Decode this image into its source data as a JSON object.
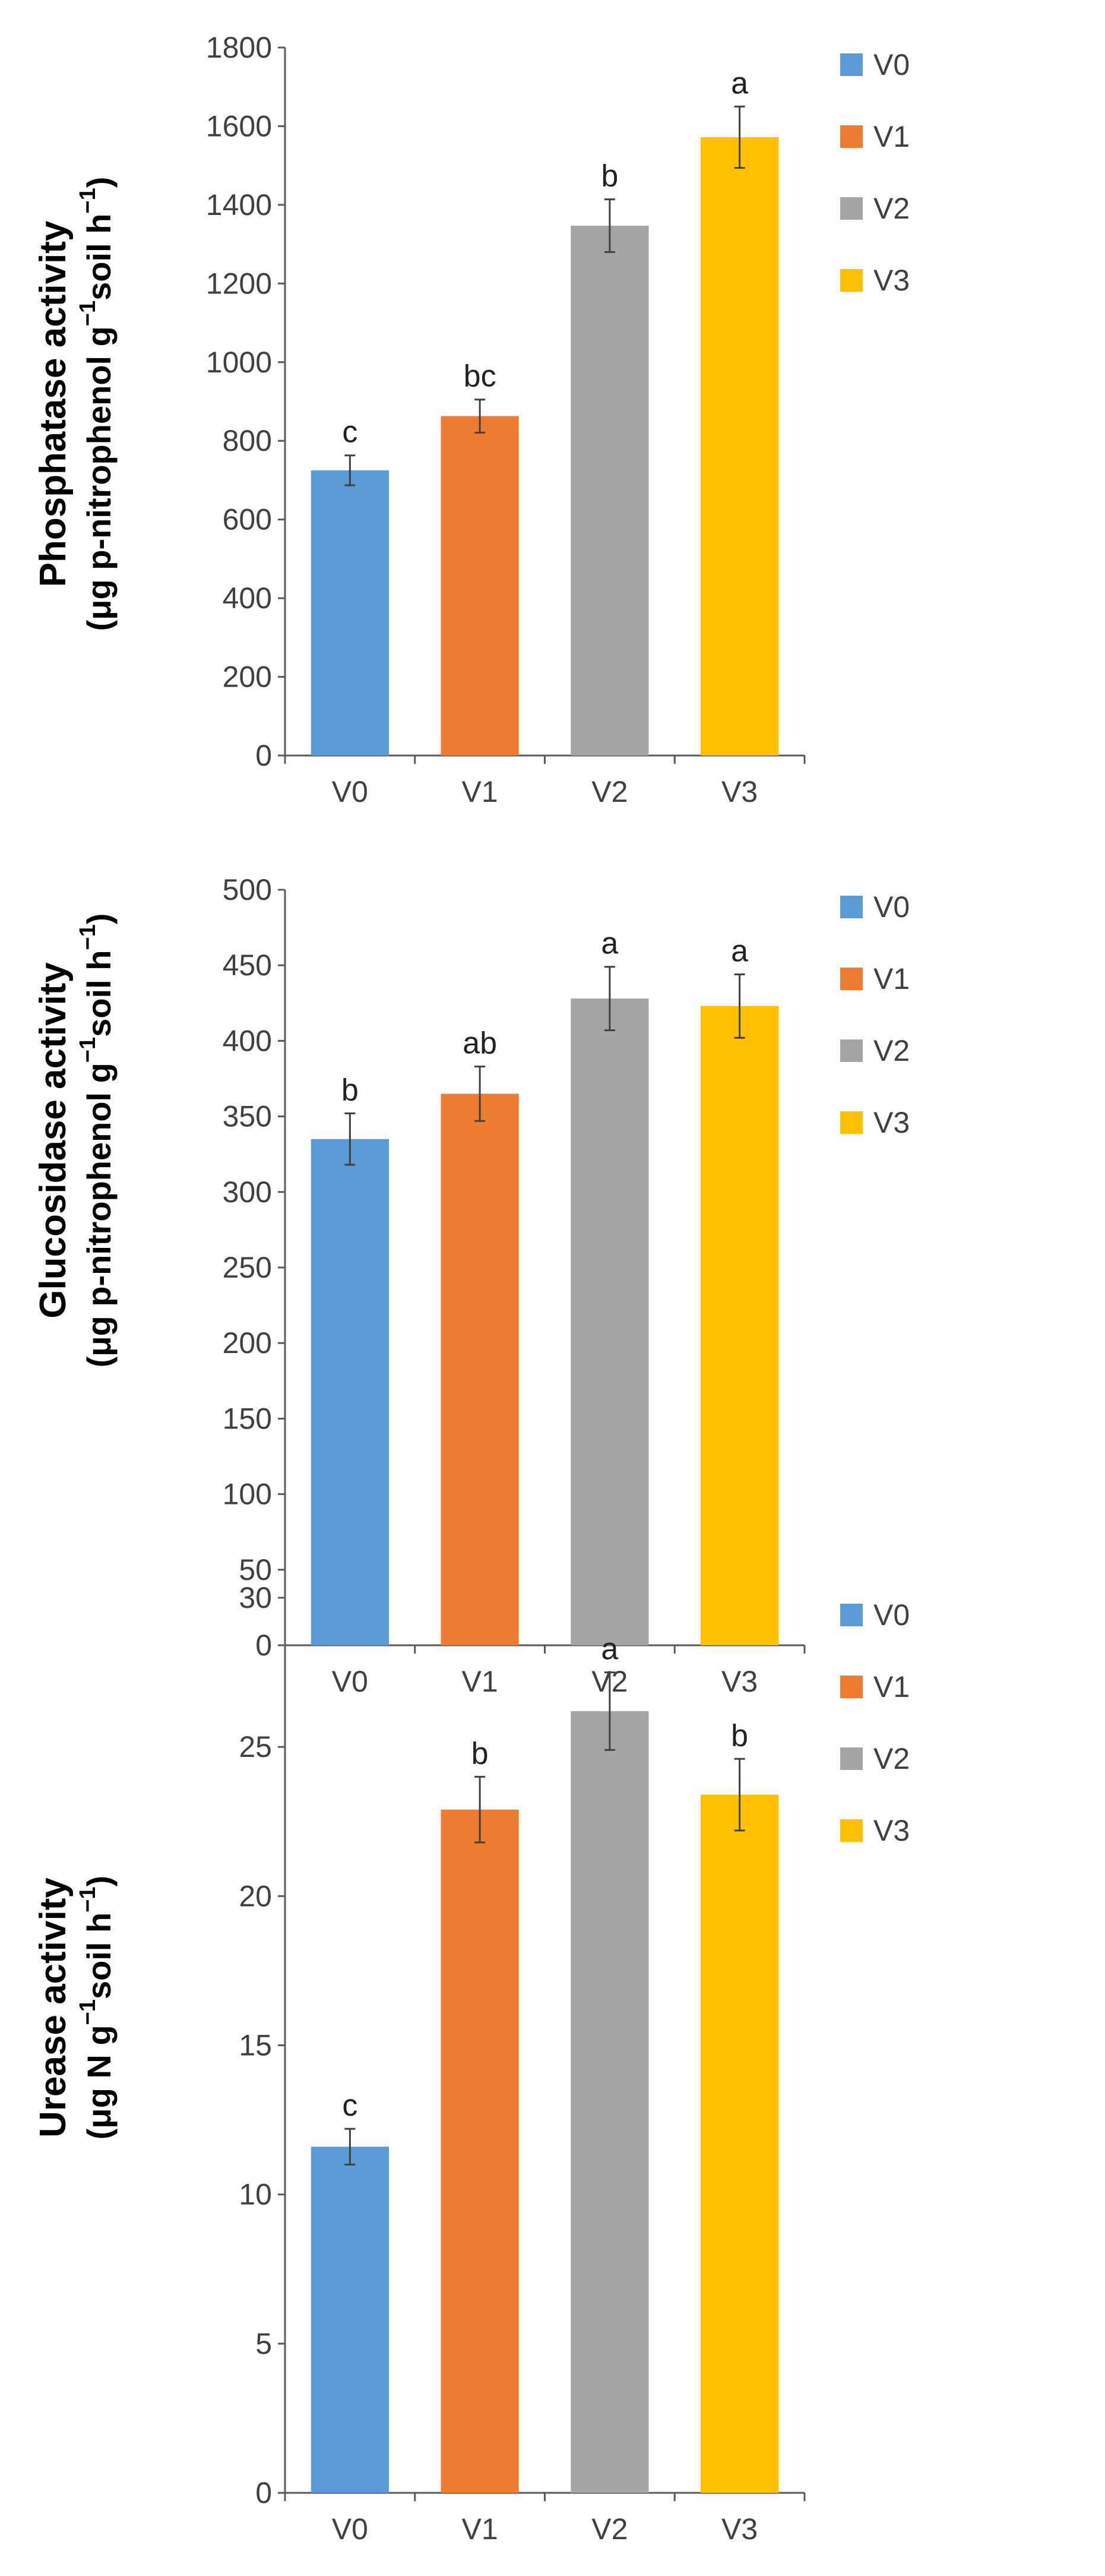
{
  "chart_data": [
    {
      "type": "bar",
      "categories": [
        "V0",
        "V1",
        "V2",
        "V3"
      ],
      "values": [
        725,
        863,
        1347,
        1572
      ],
      "errors": [
        38,
        42,
        67,
        78
      ],
      "significance": [
        "c",
        "bc",
        "b",
        "a"
      ],
      "ylim": [
        0,
        1800
      ],
      "yticks": [
        0,
        200,
        400,
        600,
        800,
        1000,
        1200,
        1400,
        1600,
        1800
      ],
      "ylabel_line1": "Phosphatase  activity",
      "ylabel_line2": "(μg p-nitrophenol g",
      "ylabel_sup1": "−1",
      "ylabel_mid": "soil h",
      "ylabel_sup2": "−1",
      "ylabel_end": ")",
      "legend": [
        "V0",
        "V1",
        "V2",
        "V3"
      ],
      "legend_position": "top-right",
      "colors": [
        "#5B9BD5",
        "#ED7D31",
        "#A5A5A5",
        "#FFC000"
      ]
    },
    {
      "type": "bar",
      "categories": [
        "V0",
        "V1",
        "V2",
        "V3"
      ],
      "values": [
        335,
        365,
        428,
        423
      ],
      "errors": [
        17,
        18,
        21,
        21
      ],
      "significance": [
        "b",
        "ab",
        "a",
        "a"
      ],
      "ylim": [
        0,
        500
      ],
      "yticks": [
        0,
        50,
        100,
        150,
        200,
        250,
        300,
        350,
        400,
        450,
        500
      ],
      "ylabel_line1": "Glucosidase activity",
      "ylabel_line2": "(μg p-nitrophenol g",
      "ylabel_sup1": "−1",
      "ylabel_mid": "soil h",
      "ylabel_sup2": "−1",
      "ylabel_end": ")",
      "legend": [
        "V0",
        "V1",
        "V2",
        "V3"
      ],
      "legend_position": "top-right",
      "colors": [
        "#5B9BD5",
        "#ED7D31",
        "#A5A5A5",
        "#FFC000"
      ]
    },
    {
      "type": "bar",
      "categories": [
        "V0",
        "V1",
        "V2",
        "V3"
      ],
      "values": [
        11.6,
        22.9,
        26.2,
        23.4
      ],
      "errors": [
        0.6,
        1.1,
        1.3,
        1.2
      ],
      "significance": [
        "c",
        "b",
        "a",
        "b"
      ],
      "ylim": [
        0,
        30
      ],
      "yticks": [
        0,
        5,
        10,
        15,
        20,
        25,
        30
      ],
      "ylabel_line1": "Urease  activity",
      "ylabel_line2": "(μg N g",
      "ylabel_sup1": "−1",
      "ylabel_mid": "soil h",
      "ylabel_sup2": "−1",
      "ylabel_end": ")",
      "legend": [
        "V0",
        "V1",
        "V2",
        "V3"
      ],
      "legend_position": "top-right",
      "colors": [
        "#5B9BD5",
        "#ED7D31",
        "#A5A5A5",
        "#FFC000"
      ]
    }
  ]
}
